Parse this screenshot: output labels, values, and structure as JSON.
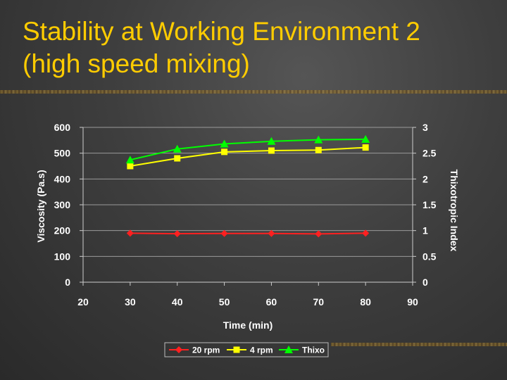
{
  "slide": {
    "title_line1": "Stability at Working Environment 2",
    "title_line2": "(high speed mixing)"
  },
  "colors": {
    "title": "#ffcc00",
    "rpm20": "#ff2020",
    "rpm4": "#ffff00",
    "thixo": "#00ff00"
  },
  "chart_data": {
    "type": "line",
    "xlabel": "Time (min)",
    "ylabel": "Viscosity (Pa.s)",
    "y2label": "Thixotropic Index",
    "xlim": [
      20,
      90
    ],
    "ylim": [
      0,
      600
    ],
    "y2lim": [
      0,
      3
    ],
    "x_ticks": [
      "20",
      "30",
      "40",
      "50",
      "60",
      "70",
      "80",
      "90"
    ],
    "y_ticks": [
      "0",
      "100",
      "200",
      "300",
      "400",
      "500",
      "600"
    ],
    "y2_ticks": [
      "0",
      "0.5",
      "1",
      "1.5",
      "2",
      "2.5",
      "3"
    ],
    "grid": "horizontal",
    "legend_position": "bottom",
    "series": [
      {
        "name": "20 rpm",
        "axis": "left",
        "marker": "diamond",
        "color": "#ff2020",
        "x": [
          30,
          40,
          50,
          60,
          70,
          80
        ],
        "values": [
          190,
          188,
          189,
          189,
          187,
          190
        ]
      },
      {
        "name": "4 rpm",
        "axis": "left",
        "marker": "square",
        "color": "#ffff00",
        "x": [
          30,
          40,
          50,
          60,
          70,
          80
        ],
        "values": [
          450,
          480,
          505,
          510,
          512,
          522
        ]
      },
      {
        "name": "Thixo",
        "axis": "right",
        "marker": "triangle",
        "color": "#00ff00",
        "x": [
          30,
          40,
          50,
          60,
          70,
          80
        ],
        "values": [
          2.37,
          2.58,
          2.68,
          2.73,
          2.76,
          2.77
        ]
      }
    ]
  }
}
